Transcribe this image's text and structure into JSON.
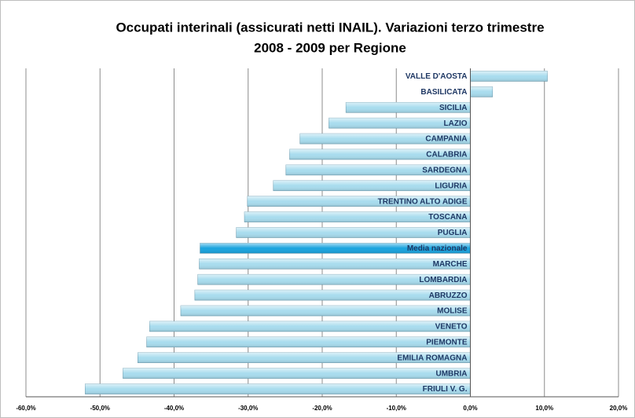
{
  "chart_data": {
    "type": "bar",
    "orientation": "horizontal",
    "title": [
      "Occupati interinali (assicurati netti INAIL). Variazioni terzo trimestre",
      "2008  - 2009 per Regione"
    ],
    "categories": [
      "VALLE D'AOSTA",
      "BASILICATA",
      "SICILIA",
      "LAZIO",
      "CAMPANIA",
      "CALABRIA",
      "SARDEGNA",
      "LIGURIA",
      "TRENTINO ALTO ADIGE",
      "TOSCANA",
      "PUGLIA",
      "Media nazionale",
      "MARCHE",
      "LOMBARDIA",
      "ABRUZZO",
      "MOLISE",
      "VENETO",
      "PIEMONTE",
      "EMILIA ROMAGNA",
      "UMBRIA",
      "FRIULI V. G."
    ],
    "values": [
      10.4,
      3.0,
      -16.8,
      -19.1,
      -23.0,
      -24.4,
      -24.9,
      -26.6,
      -30.1,
      -30.5,
      -31.6,
      -36.5,
      -36.6,
      -36.8,
      -37.2,
      -39.1,
      -43.3,
      -43.7,
      -44.9,
      -46.9,
      -52.0
    ],
    "colors": [
      "#a8dcee",
      "#a8dcee",
      "#a8dcee",
      "#a8dcee",
      "#a8dcee",
      "#a8dcee",
      "#a8dcee",
      "#a8dcee",
      "#a8dcee",
      "#a8dcee",
      "#a8dcee",
      "#19a3de",
      "#a8dcee",
      "#a8dcee",
      "#a8dcee",
      "#a8dcee",
      "#a8dcee",
      "#a8dcee",
      "#a8dcee",
      "#a8dcee",
      "#a8dcee"
    ],
    "xlim": [
      -60,
      20
    ],
    "xticks": [
      {
        "value": -60,
        "label": "-60,0%"
      },
      {
        "value": -50,
        "label": "-50,0%"
      },
      {
        "value": -40,
        "label": "-40,0%"
      },
      {
        "value": -30,
        "label": "-30,0%"
      },
      {
        "value": -20,
        "label": "-20,0%"
      },
      {
        "value": -10,
        "label": "-10,0%"
      },
      {
        "value": 0,
        "label": "0,0%"
      },
      {
        "value": 10,
        "label": "10,0%"
      },
      {
        "value": 20,
        "label": "20,0%"
      }
    ],
    "grid": true
  }
}
